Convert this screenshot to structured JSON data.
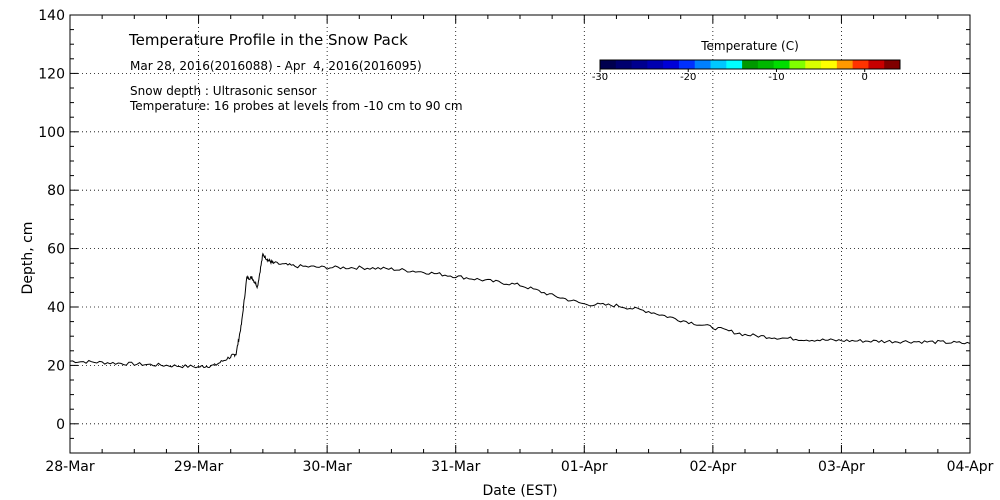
{
  "chart_data": {
    "type": "line",
    "title": "Temperature Profile in the Snow Pack",
    "subtitle": "Mar 28, 2016(2016088) - Apr  4, 2016(2016095)",
    "notes": [
      "Snow depth : Ultrasonic sensor",
      "Temperature: 16 probes at levels from -10 cm to 90 cm"
    ],
    "xlabel": "Date (EST)",
    "ylabel": "Depth, cm",
    "xlim": [
      "2016-03-28T00:00",
      "2016-04-04T00:00"
    ],
    "ylim": [
      -10,
      140
    ],
    "x_ticks": [
      "28-Mar",
      "29-Mar",
      "30-Mar",
      "31-Mar",
      "01-Apr",
      "02-Apr",
      "03-Apr",
      "04-Apr"
    ],
    "y_ticks": [
      0,
      20,
      40,
      60,
      80,
      100,
      120,
      140
    ],
    "grid": true,
    "series": [
      {
        "label": "Snow depth",
        "color": "#000000",
        "x": [
          "2016-03-28T00:00",
          "2016-03-28T06:00",
          "2016-03-28T12:00",
          "2016-03-28T18:00",
          "2016-03-29T00:00",
          "2016-03-29T03:00",
          "2016-03-29T06:00",
          "2016-03-29T07:00",
          "2016-03-29T08:00",
          "2016-03-29T09:00",
          "2016-03-29T10:00",
          "2016-03-29T11:00",
          "2016-03-29T12:00",
          "2016-03-29T13:00",
          "2016-03-29T14:00",
          "2016-03-29T18:00",
          "2016-03-30T00:00",
          "2016-03-30T06:00",
          "2016-03-30T12:00",
          "2016-03-30T18:00",
          "2016-03-31T00:00",
          "2016-03-31T06:00",
          "2016-03-31T12:00",
          "2016-03-31T18:00",
          "2016-04-01T00:00",
          "2016-04-01T06:00",
          "2016-04-01T12:00",
          "2016-04-01T18:00",
          "2016-04-02T00:00",
          "2016-04-02T06:00",
          "2016-04-02T12:00",
          "2016-04-02T18:00",
          "2016-04-03T00:00",
          "2016-04-03T06:00",
          "2016-04-03T12:00",
          "2016-04-03T18:00",
          "2016-04-04T00:00"
        ],
        "y": [
          21.5,
          21,
          20.5,
          20,
          19.5,
          20,
          23,
          24,
          34,
          50,
          50,
          47,
          58,
          56,
          55,
          54,
          53.5,
          53.5,
          53,
          52,
          50.5,
          49,
          47.5,
          44,
          41,
          40.5,
          38.5,
          35.5,
          33,
          30.5,
          29.5,
          28.8,
          28.5,
          28.3,
          28.2,
          28,
          27.5
        ]
      }
    ],
    "colorbar": {
      "title": "Temperature (C)",
      "ticks": [
        -30,
        -20,
        -10,
        0
      ],
      "range": [
        -30,
        4
      ],
      "colors": [
        "#00004f",
        "#00006f",
        "#00008f",
        "#0000b0",
        "#0000d8",
        "#0030ff",
        "#0080ff",
        "#00c8ff",
        "#00ffff",
        "#009900",
        "#00b800",
        "#00dd00",
        "#80ff00",
        "#d8ff00",
        "#ffff00",
        "#ff9900",
        "#ff3300",
        "#c80000",
        "#800000"
      ]
    }
  }
}
